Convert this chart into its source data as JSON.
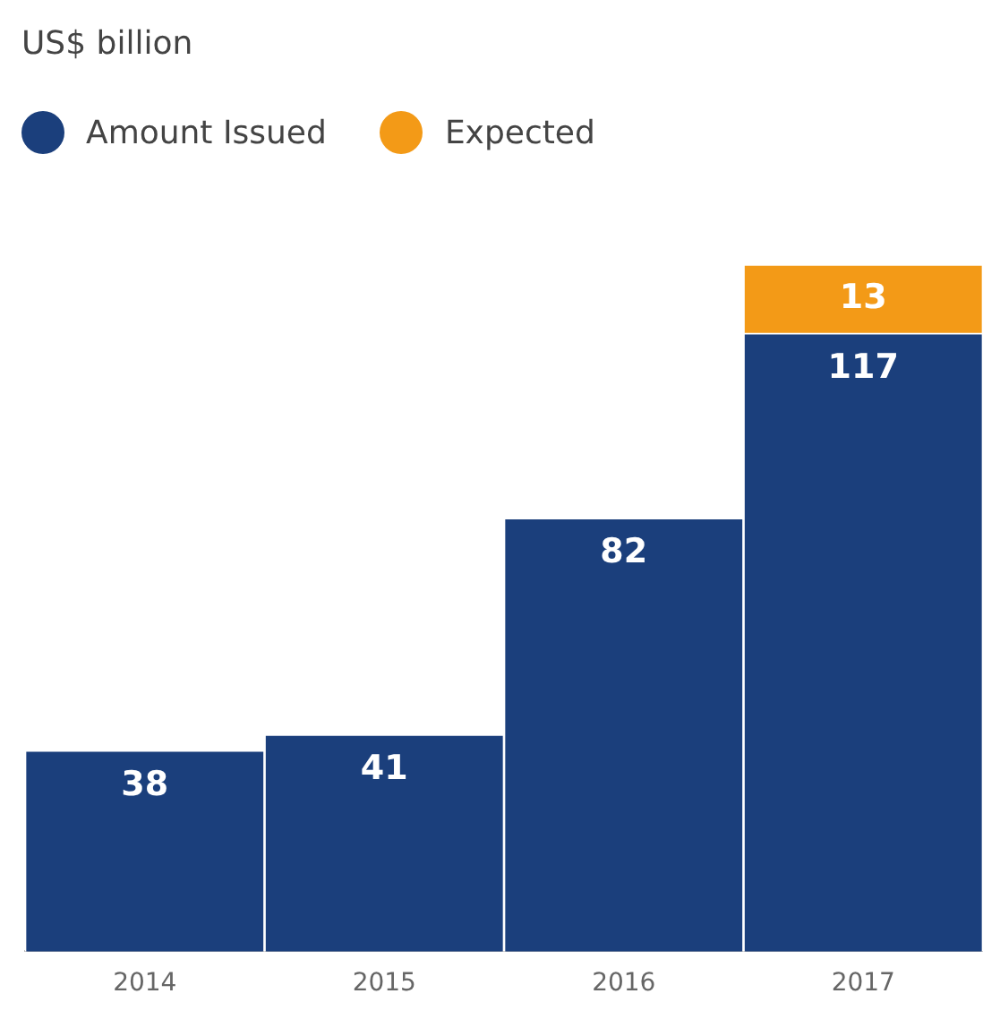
{
  "chart_data": {
    "type": "bar",
    "title": "US$ billion",
    "categories": [
      "2014",
      "2015",
      "2016",
      "2017"
    ],
    "stacked": true,
    "legend": "top left",
    "data_labels": true,
    "grid": false,
    "series": [
      {
        "name": "Amount Issued",
        "color": "#1b3f7c",
        "values": [
          38,
          41,
          82,
          117
        ]
      },
      {
        "name": "Expected",
        "color": "#f39a17",
        "values": [
          null,
          null,
          null,
          13
        ]
      }
    ]
  }
}
